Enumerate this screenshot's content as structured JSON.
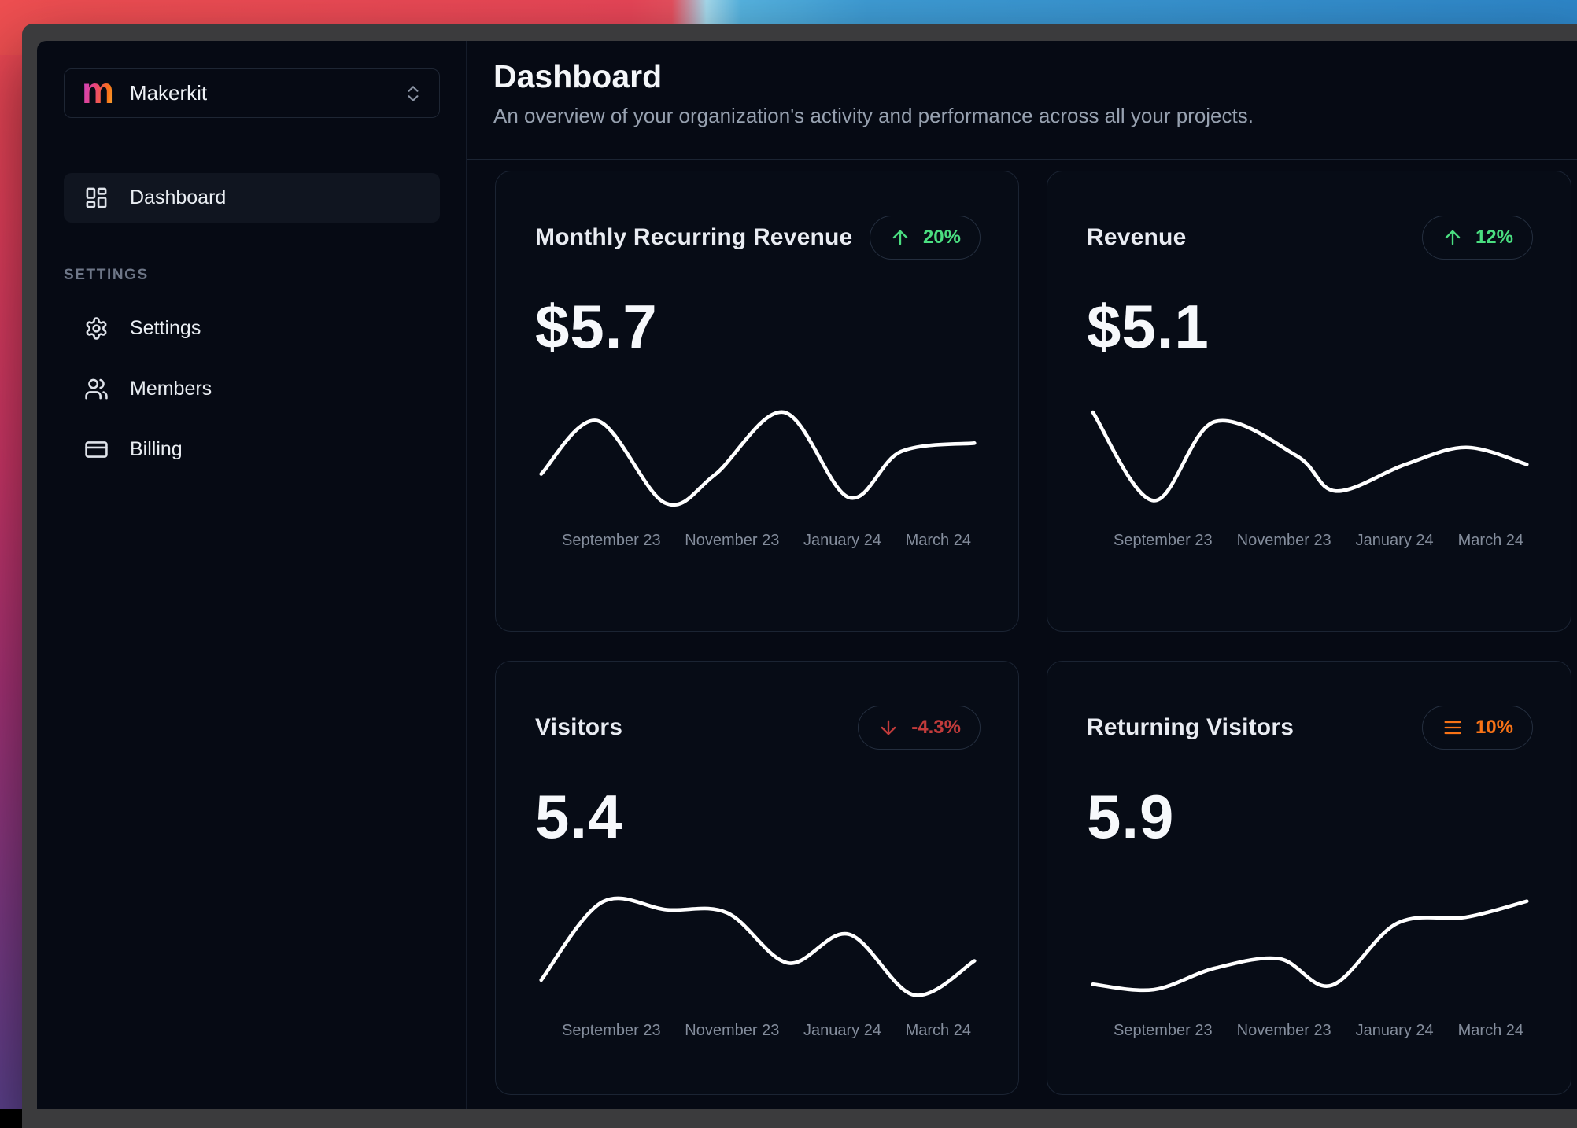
{
  "desktop": {
    "wallpaper_colors": [
      "#ee4a52",
      "#d6336c",
      "#5d428f",
      "#3f9dd6"
    ]
  },
  "window": {
    "titlebar_color": "#3b3b3d"
  },
  "sidebar": {
    "team_selector": {
      "logo_letter": "m",
      "name": "Makerkit",
      "chevron_icon": "chevrons-up-down-icon"
    },
    "nav_items": [
      {
        "label": "Dashboard",
        "icon": "dashboard-grid-icon",
        "active": true
      }
    ],
    "section_label": "SETTINGS",
    "settings_items": [
      {
        "label": "Settings",
        "icon": "gear-icon"
      },
      {
        "label": "Members",
        "icon": "users-icon"
      },
      {
        "label": "Billing",
        "icon": "credit-card-icon"
      }
    ]
  },
  "header": {
    "title": "Dashboard",
    "subtitle": "An overview of your organization's activity and performance across all your projects."
  },
  "months": [
    "September 23",
    "November 23",
    "January 24",
    "March 24"
  ],
  "cards": [
    {
      "title": "Monthly Recurring Revenue",
      "value": "$5.7",
      "trend": "up",
      "trend_label": "20%",
      "trend_color": "#4ade80",
      "trend_icon": "arrow-up-icon"
    },
    {
      "title": "Revenue",
      "value": "$5.1",
      "trend": "up",
      "trend_label": "12%",
      "trend_color": "#4ade80",
      "trend_icon": "arrow-up-icon"
    },
    {
      "title": "Visitors",
      "value": "5.4",
      "trend": "down",
      "trend_label": "-4.3%",
      "trend_color": "#c23b3b",
      "trend_icon": "arrow-down-icon"
    },
    {
      "title": "Returning Visitors",
      "value": "5.9",
      "trend": "flat",
      "trend_label": "10%",
      "trend_color": "#f97316",
      "trend_icon": "equal-lines-icon"
    }
  ],
  "chart_data": [
    {
      "type": "line",
      "title": "Monthly Recurring Revenue",
      "line_color": "#ffffff",
      "categories": [
        "September 23",
        "November 23",
        "January 24",
        "March 24"
      ],
      "values_estimated": [
        4.1,
        5.4,
        3.3,
        4.0,
        5.7,
        3.5,
        4.6,
        4.8
      ],
      "curve_norm": [
        [
          0,
          0.63
        ],
        [
          0.13,
          0.13
        ],
        [
          0.285,
          0.9
        ],
        [
          0.4,
          0.64
        ],
        [
          0.56,
          0.05
        ],
        [
          0.71,
          0.85
        ],
        [
          0.83,
          0.42
        ],
        [
          1,
          0.34
        ]
      ],
      "grid": false,
      "y_axis": "hidden",
      "legend": "none"
    },
    {
      "type": "line",
      "title": "Revenue",
      "line_color": "#ffffff",
      "categories": [
        "September 23",
        "November 23",
        "January 24",
        "March 24"
      ],
      "values_estimated": [
        5.1,
        2.9,
        4.9,
        4.0,
        3.1,
        3.8,
        4.2,
        3.8
      ],
      "curve_norm": [
        [
          0,
          0.05
        ],
        [
          0.14,
          0.88
        ],
        [
          0.28,
          0.14
        ],
        [
          0.47,
          0.46
        ],
        [
          0.56,
          0.79
        ],
        [
          0.72,
          0.54
        ],
        [
          0.86,
          0.38
        ],
        [
          1,
          0.54
        ]
      ],
      "grid": false,
      "y_axis": "hidden",
      "legend": "none"
    },
    {
      "type": "line",
      "title": "Visitors",
      "line_color": "#ffffff",
      "categories": [
        "September 23",
        "November 23",
        "January 24",
        "March 24"
      ],
      "values_estimated": [
        2.6,
        5.4,
        5.2,
        5.1,
        3.3,
        4.3,
        2.2,
        3.4
      ],
      "curve_norm": [
        [
          0,
          0.78
        ],
        [
          0.14,
          0.05
        ],
        [
          0.29,
          0.12
        ],
        [
          0.43,
          0.15
        ],
        [
          0.57,
          0.62
        ],
        [
          0.71,
          0.35
        ],
        [
          0.86,
          0.92
        ],
        [
          1,
          0.6
        ]
      ],
      "grid": false,
      "y_axis": "hidden",
      "legend": "none"
    },
    {
      "type": "line",
      "title": "Returning Visitors",
      "line_color": "#ffffff",
      "categories": [
        "September 23",
        "November 23",
        "January 24",
        "March 24"
      ],
      "values_estimated": [
        3.1,
        2.9,
        3.6,
        3.9,
        3.0,
        5.2,
        5.4,
        5.9
      ],
      "curve_norm": [
        [
          0,
          0.82
        ],
        [
          0.14,
          0.87
        ],
        [
          0.28,
          0.67
        ],
        [
          0.43,
          0.58
        ],
        [
          0.55,
          0.83
        ],
        [
          0.7,
          0.25
        ],
        [
          0.86,
          0.19
        ],
        [
          1,
          0.04
        ]
      ],
      "grid": false,
      "y_axis": "hidden",
      "legend": "none"
    }
  ]
}
